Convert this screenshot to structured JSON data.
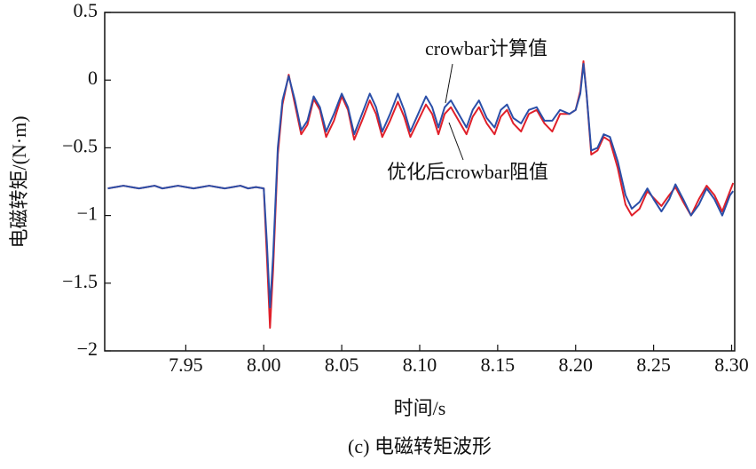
{
  "chart_data": {
    "type": "line",
    "caption": "(c) 电磁转矩波形",
    "x_label": "时间/s",
    "y_label": "电磁转矩/(N·m)",
    "xlim": [
      7.898,
      8.302
    ],
    "ylim": [
      -2,
      0.5
    ],
    "xticks": [
      {
        "value": 7.95,
        "label": "7.95"
      },
      {
        "value": 8,
        "label": "8.00"
      },
      8.05,
      {
        "value": 8.1,
        "label": "8.10"
      },
      8.15,
      {
        "value": 8.2,
        "label": "8.20"
      },
      8.25,
      {
        "value": 8.3,
        "label": "8.30"
      }
    ],
    "yticks": [
      0.5,
      0,
      {
        "value": -0.5,
        "label": "−0.5"
      },
      {
        "value": -1,
        "label": "−1"
      },
      {
        "value": -1.5,
        "label": "−1.5"
      },
      {
        "value": -2,
        "label": "−2"
      }
    ],
    "x": [
      7.9,
      7.905,
      7.91,
      7.915,
      7.92,
      7.925,
      7.93,
      7.935,
      7.94,
      7.945,
      7.95,
      7.955,
      7.96,
      7.965,
      7.97,
      7.975,
      7.98,
      7.985,
      7.99,
      7.995,
      8.0,
      8.002,
      8.004,
      8.006,
      8.009,
      8.012,
      8.016,
      8.02,
      8.024,
      8.028,
      8.032,
      8.036,
      8.04,
      8.045,
      8.05,
      8.054,
      8.058,
      8.063,
      8.068,
      8.072,
      8.076,
      8.081,
      8.086,
      8.09,
      8.094,
      8.099,
      8.104,
      8.108,
      8.112,
      8.116,
      8.12,
      8.125,
      8.13,
      8.134,
      8.138,
      8.143,
      8.148,
      8.152,
      8.156,
      8.16,
      8.165,
      8.17,
      8.175,
      8.18,
      8.185,
      8.19,
      8.196,
      8.2,
      8.203,
      8.205,
      8.207,
      8.21,
      8.214,
      8.218,
      8.222,
      8.227,
      8.232,
      8.236,
      8.241,
      8.246,
      8.25,
      8.255,
      8.26,
      8.264,
      8.269,
      8.274,
      8.279,
      8.284,
      8.289,
      8.294,
      8.299,
      8.301
    ],
    "series": [
      {
        "name": "优化后crowbar阻值",
        "color": "#e0202a",
        "values": [
          -0.8,
          -0.79,
          -0.78,
          -0.79,
          -0.8,
          -0.79,
          -0.78,
          -0.8,
          -0.79,
          -0.78,
          -0.79,
          -0.8,
          -0.79,
          -0.78,
          -0.79,
          -0.8,
          -0.79,
          -0.78,
          -0.8,
          -0.79,
          -0.8,
          -1.3,
          -1.83,
          -1.4,
          -0.55,
          -0.18,
          0.04,
          -0.18,
          -0.4,
          -0.33,
          -0.14,
          -0.22,
          -0.42,
          -0.3,
          -0.12,
          -0.22,
          -0.44,
          -0.3,
          -0.15,
          -0.25,
          -0.42,
          -0.3,
          -0.16,
          -0.27,
          -0.42,
          -0.3,
          -0.18,
          -0.25,
          -0.4,
          -0.25,
          -0.2,
          -0.3,
          -0.4,
          -0.27,
          -0.2,
          -0.32,
          -0.4,
          -0.27,
          -0.22,
          -0.32,
          -0.38,
          -0.25,
          -0.22,
          -0.32,
          -0.38,
          -0.25,
          -0.25,
          -0.22,
          -0.08,
          0.14,
          -0.1,
          -0.55,
          -0.52,
          -0.42,
          -0.45,
          -0.65,
          -0.92,
          -1.0,
          -0.95,
          -0.82,
          -0.87,
          -0.93,
          -0.85,
          -0.79,
          -0.9,
          -1.0,
          -0.88,
          -0.78,
          -0.85,
          -0.97,
          -0.82,
          -0.76
        ]
      },
      {
        "name": "crowbar计算值",
        "color": "#2b4fa8",
        "values": [
          -0.8,
          -0.79,
          -0.78,
          -0.79,
          -0.8,
          -0.79,
          -0.78,
          -0.8,
          -0.79,
          -0.78,
          -0.79,
          -0.8,
          -0.79,
          -0.78,
          -0.79,
          -0.8,
          -0.79,
          -0.78,
          -0.8,
          -0.79,
          -0.8,
          -1.2,
          -1.68,
          -1.3,
          -0.5,
          -0.15,
          0.03,
          -0.15,
          -0.37,
          -0.3,
          -0.12,
          -0.2,
          -0.38,
          -0.25,
          -0.1,
          -0.2,
          -0.4,
          -0.25,
          -0.1,
          -0.2,
          -0.38,
          -0.25,
          -0.1,
          -0.22,
          -0.38,
          -0.25,
          -0.12,
          -0.2,
          -0.35,
          -0.2,
          -0.15,
          -0.25,
          -0.35,
          -0.22,
          -0.15,
          -0.28,
          -0.35,
          -0.22,
          -0.18,
          -0.28,
          -0.32,
          -0.22,
          -0.2,
          -0.3,
          -0.3,
          -0.22,
          -0.25,
          -0.22,
          -0.1,
          0.12,
          -0.1,
          -0.52,
          -0.5,
          -0.4,
          -0.42,
          -0.6,
          -0.85,
          -0.95,
          -0.9,
          -0.8,
          -0.88,
          -0.97,
          -0.88,
          -0.77,
          -0.88,
          -1.0,
          -0.92,
          -0.8,
          -0.88,
          -1.0,
          -0.85,
          -0.82
        ]
      }
    ]
  }
}
